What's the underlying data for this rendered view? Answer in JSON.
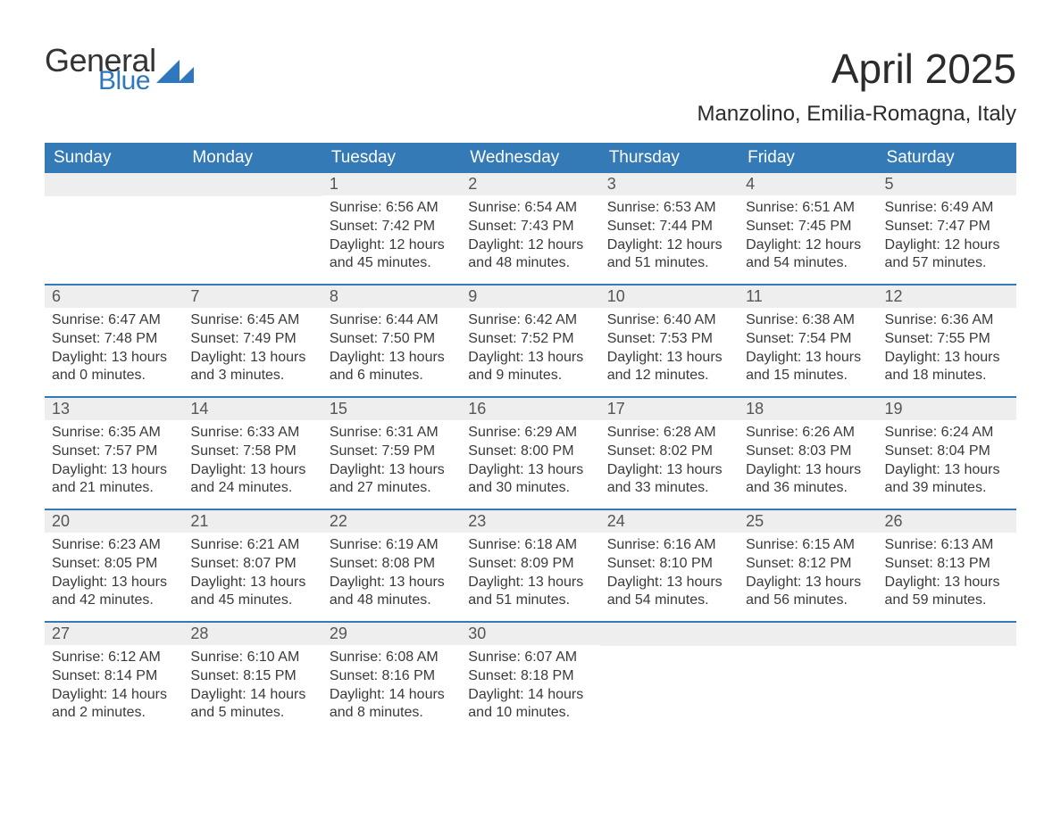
{
  "logo": {
    "word1": "General",
    "word2": "Blue"
  },
  "title": "April 2025",
  "subtitle": "Manzolino, Emilia-Romagna, Italy",
  "colors": {
    "header_bg": "#337ab7",
    "header_text": "#ffffff",
    "daynum_bg": "#eeeeee",
    "border": "#337ab7",
    "body_text": "#3a3a3a",
    "logo_blue": "#2f78bf"
  },
  "columns": [
    "Sunday",
    "Monday",
    "Tuesday",
    "Wednesday",
    "Thursday",
    "Friday",
    "Saturday"
  ],
  "weeks": [
    [
      {
        "blank": true
      },
      {
        "blank": true
      },
      {
        "num": "1",
        "sunrise": "Sunrise: 6:56 AM",
        "sunset": "Sunset: 7:42 PM",
        "daylight1": "Daylight: 12 hours",
        "daylight2": "and 45 minutes."
      },
      {
        "num": "2",
        "sunrise": "Sunrise: 6:54 AM",
        "sunset": "Sunset: 7:43 PM",
        "daylight1": "Daylight: 12 hours",
        "daylight2": "and 48 minutes."
      },
      {
        "num": "3",
        "sunrise": "Sunrise: 6:53 AM",
        "sunset": "Sunset: 7:44 PM",
        "daylight1": "Daylight: 12 hours",
        "daylight2": "and 51 minutes."
      },
      {
        "num": "4",
        "sunrise": "Sunrise: 6:51 AM",
        "sunset": "Sunset: 7:45 PM",
        "daylight1": "Daylight: 12 hours",
        "daylight2": "and 54 minutes."
      },
      {
        "num": "5",
        "sunrise": "Sunrise: 6:49 AM",
        "sunset": "Sunset: 7:47 PM",
        "daylight1": "Daylight: 12 hours",
        "daylight2": "and 57 minutes."
      }
    ],
    [
      {
        "num": "6",
        "sunrise": "Sunrise: 6:47 AM",
        "sunset": "Sunset: 7:48 PM",
        "daylight1": "Daylight: 13 hours",
        "daylight2": "and 0 minutes."
      },
      {
        "num": "7",
        "sunrise": "Sunrise: 6:45 AM",
        "sunset": "Sunset: 7:49 PM",
        "daylight1": "Daylight: 13 hours",
        "daylight2": "and 3 minutes."
      },
      {
        "num": "8",
        "sunrise": "Sunrise: 6:44 AM",
        "sunset": "Sunset: 7:50 PM",
        "daylight1": "Daylight: 13 hours",
        "daylight2": "and 6 minutes."
      },
      {
        "num": "9",
        "sunrise": "Sunrise: 6:42 AM",
        "sunset": "Sunset: 7:52 PM",
        "daylight1": "Daylight: 13 hours",
        "daylight2": "and 9 minutes."
      },
      {
        "num": "10",
        "sunrise": "Sunrise: 6:40 AM",
        "sunset": "Sunset: 7:53 PM",
        "daylight1": "Daylight: 13 hours",
        "daylight2": "and 12 minutes."
      },
      {
        "num": "11",
        "sunrise": "Sunrise: 6:38 AM",
        "sunset": "Sunset: 7:54 PM",
        "daylight1": "Daylight: 13 hours",
        "daylight2": "and 15 minutes."
      },
      {
        "num": "12",
        "sunrise": "Sunrise: 6:36 AM",
        "sunset": "Sunset: 7:55 PM",
        "daylight1": "Daylight: 13 hours",
        "daylight2": "and 18 minutes."
      }
    ],
    [
      {
        "num": "13",
        "sunrise": "Sunrise: 6:35 AM",
        "sunset": "Sunset: 7:57 PM",
        "daylight1": "Daylight: 13 hours",
        "daylight2": "and 21 minutes."
      },
      {
        "num": "14",
        "sunrise": "Sunrise: 6:33 AM",
        "sunset": "Sunset: 7:58 PM",
        "daylight1": "Daylight: 13 hours",
        "daylight2": "and 24 minutes."
      },
      {
        "num": "15",
        "sunrise": "Sunrise: 6:31 AM",
        "sunset": "Sunset: 7:59 PM",
        "daylight1": "Daylight: 13 hours",
        "daylight2": "and 27 minutes."
      },
      {
        "num": "16",
        "sunrise": "Sunrise: 6:29 AM",
        "sunset": "Sunset: 8:00 PM",
        "daylight1": "Daylight: 13 hours",
        "daylight2": "and 30 minutes."
      },
      {
        "num": "17",
        "sunrise": "Sunrise: 6:28 AM",
        "sunset": "Sunset: 8:02 PM",
        "daylight1": "Daylight: 13 hours",
        "daylight2": "and 33 minutes."
      },
      {
        "num": "18",
        "sunrise": "Sunrise: 6:26 AM",
        "sunset": "Sunset: 8:03 PM",
        "daylight1": "Daylight: 13 hours",
        "daylight2": "and 36 minutes."
      },
      {
        "num": "19",
        "sunrise": "Sunrise: 6:24 AM",
        "sunset": "Sunset: 8:04 PM",
        "daylight1": "Daylight: 13 hours",
        "daylight2": "and 39 minutes."
      }
    ],
    [
      {
        "num": "20",
        "sunrise": "Sunrise: 6:23 AM",
        "sunset": "Sunset: 8:05 PM",
        "daylight1": "Daylight: 13 hours",
        "daylight2": "and 42 minutes."
      },
      {
        "num": "21",
        "sunrise": "Sunrise: 6:21 AM",
        "sunset": "Sunset: 8:07 PM",
        "daylight1": "Daylight: 13 hours",
        "daylight2": "and 45 minutes."
      },
      {
        "num": "22",
        "sunrise": "Sunrise: 6:19 AM",
        "sunset": "Sunset: 8:08 PM",
        "daylight1": "Daylight: 13 hours",
        "daylight2": "and 48 minutes."
      },
      {
        "num": "23",
        "sunrise": "Sunrise: 6:18 AM",
        "sunset": "Sunset: 8:09 PM",
        "daylight1": "Daylight: 13 hours",
        "daylight2": "and 51 minutes."
      },
      {
        "num": "24",
        "sunrise": "Sunrise: 6:16 AM",
        "sunset": "Sunset: 8:10 PM",
        "daylight1": "Daylight: 13 hours",
        "daylight2": "and 54 minutes."
      },
      {
        "num": "25",
        "sunrise": "Sunrise: 6:15 AM",
        "sunset": "Sunset: 8:12 PM",
        "daylight1": "Daylight: 13 hours",
        "daylight2": "and 56 minutes."
      },
      {
        "num": "26",
        "sunrise": "Sunrise: 6:13 AM",
        "sunset": "Sunset: 8:13 PM",
        "daylight1": "Daylight: 13 hours",
        "daylight2": "and 59 minutes."
      }
    ],
    [
      {
        "num": "27",
        "sunrise": "Sunrise: 6:12 AM",
        "sunset": "Sunset: 8:14 PM",
        "daylight1": "Daylight: 14 hours",
        "daylight2": "and 2 minutes."
      },
      {
        "num": "28",
        "sunrise": "Sunrise: 6:10 AM",
        "sunset": "Sunset: 8:15 PM",
        "daylight1": "Daylight: 14 hours",
        "daylight2": "and 5 minutes."
      },
      {
        "num": "29",
        "sunrise": "Sunrise: 6:08 AM",
        "sunset": "Sunset: 8:16 PM",
        "daylight1": "Daylight: 14 hours",
        "daylight2": "and 8 minutes."
      },
      {
        "num": "30",
        "sunrise": "Sunrise: 6:07 AM",
        "sunset": "Sunset: 8:18 PM",
        "daylight1": "Daylight: 14 hours",
        "daylight2": "and 10 minutes."
      },
      {
        "blank": true
      },
      {
        "blank": true
      },
      {
        "blank": true
      }
    ]
  ]
}
